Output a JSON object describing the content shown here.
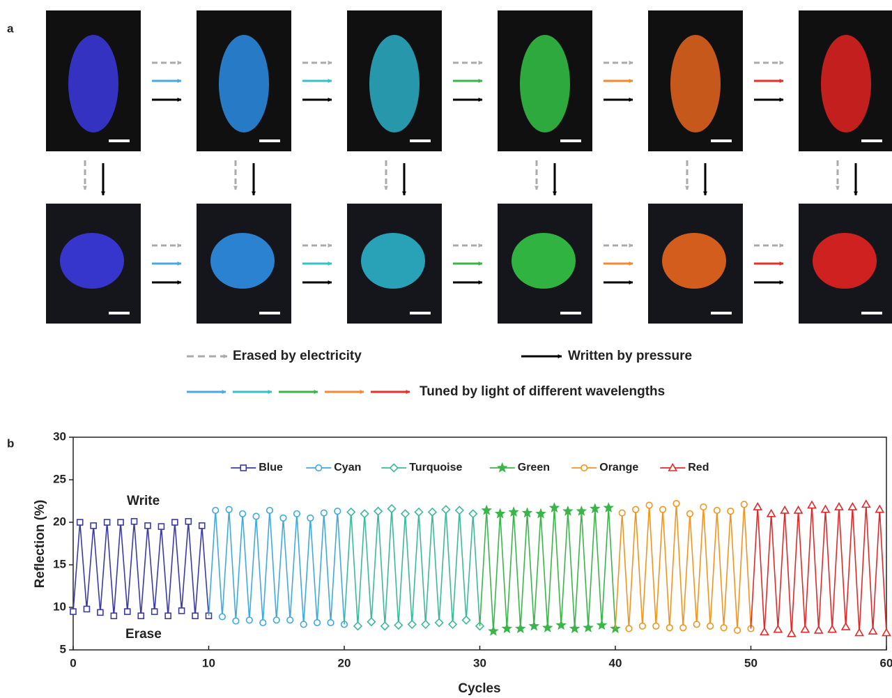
{
  "panel_a": {
    "label": "a",
    "legend": {
      "erased": "Erased by electricity",
      "written": "Written by pressure",
      "tuned": "Tuned by light of different wavelengths"
    }
  },
  "chart_data": {
    "type": "line",
    "label": "b",
    "xlabel": "Cycles",
    "ylabel": "Reflection (%)",
    "xlim": [
      0,
      60
    ],
    "xticks": [
      0,
      10,
      20,
      30,
      40,
      50,
      60
    ],
    "ylim": [
      5,
      30
    ],
    "yticks": [
      5,
      10,
      15,
      20,
      25,
      30
    ],
    "legend": "upper center",
    "annotations": [
      "Write",
      "Erase"
    ],
    "series": [
      {
        "name": "Blue",
        "color": "#3a3aa8",
        "marker": "square",
        "x": [
          0,
          0.5,
          1,
          1.5,
          2,
          2.5,
          3,
          3.5,
          4,
          4.5,
          5,
          5.5,
          6,
          6.5,
          7,
          7.5,
          8,
          8.5,
          9,
          9.5,
          10
        ],
        "values": [
          9.5,
          20.0,
          9.8,
          19.6,
          9.4,
          20.0,
          9.0,
          20.0,
          9.5,
          20.1,
          9.0,
          19.6,
          9.5,
          19.5,
          9.0,
          20.0,
          9.6,
          20.1,
          9.0,
          19.6,
          9.0
        ]
      },
      {
        "name": "Cyan",
        "color": "#3fa9e0",
        "marker": "circle",
        "x": [
          10.5,
          11,
          11.5,
          12,
          12.5,
          13,
          13.5,
          14,
          14.5,
          15,
          15.5,
          16,
          16.5,
          17,
          17.5,
          18,
          18.5,
          19,
          19.5,
          20
        ],
        "values": [
          21.4,
          8.9,
          21.5,
          8.4,
          21.0,
          8.5,
          20.7,
          8.2,
          21.4,
          8.5,
          20.5,
          8.5,
          21.0,
          8.0,
          20.5,
          8.2,
          21.1,
          8.2,
          21.3,
          8.0
        ]
      },
      {
        "name": "Turquoise",
        "color": "#3cb99a",
        "marker": "diamond",
        "x": [
          20.5,
          21,
          21.5,
          22,
          22.5,
          23,
          23.5,
          24,
          24.5,
          25,
          25.5,
          26,
          26.5,
          27,
          27.5,
          28,
          28.5,
          29,
          29.5,
          30
        ],
        "values": [
          21.2,
          7.8,
          21.0,
          8.3,
          21.3,
          7.8,
          21.6,
          7.9,
          21.0,
          8.0,
          21.2,
          8.0,
          21.2,
          8.2,
          21.5,
          8.0,
          21.4,
          8.5,
          21.0,
          7.8
        ]
      },
      {
        "name": "Green",
        "color": "#3ab54a",
        "marker": "star",
        "x": [
          30.5,
          31,
          31.5,
          32,
          32.5,
          33,
          33.5,
          34,
          34.5,
          35,
          35.5,
          36,
          36.5,
          37,
          37.5,
          38,
          38.5,
          39,
          39.5,
          40
        ],
        "values": [
          21.4,
          7.2,
          21.0,
          7.5,
          21.2,
          7.5,
          21.1,
          7.8,
          21.0,
          7.6,
          21.7,
          7.9,
          21.3,
          7.5,
          21.3,
          7.6,
          21.6,
          7.9,
          21.7,
          7.5
        ]
      },
      {
        "name": "Orange",
        "color": "#f0951e",
        "marker": "circle",
        "x": [
          40.5,
          41,
          41.5,
          42,
          42.5,
          43,
          43.5,
          44,
          44.5,
          45,
          45.5,
          46,
          46.5,
          47,
          47.5,
          48,
          48.5,
          49,
          49.5,
          50
        ],
        "values": [
          21.1,
          7.5,
          21.5,
          7.8,
          22.0,
          7.8,
          21.5,
          7.6,
          22.2,
          7.6,
          21.0,
          8.0,
          21.8,
          7.8,
          21.4,
          7.6,
          21.3,
          7.3,
          22.1,
          7.5
        ]
      },
      {
        "name": "Red",
        "color": "#e02a2a",
        "marker": "triangle",
        "x": [
          50.5,
          51,
          51.5,
          52,
          52.5,
          53,
          53.5,
          54,
          54.5,
          55,
          55.5,
          56,
          56.5,
          57,
          57.5,
          58,
          58.5,
          59,
          59.5,
          60
        ],
        "values": [
          21.8,
          7.1,
          21.0,
          7.4,
          21.4,
          6.9,
          21.4,
          7.4,
          22.0,
          7.3,
          21.5,
          7.4,
          21.8,
          7.7,
          21.8,
          7.0,
          22.1,
          7.2,
          21.5,
          7.0
        ]
      }
    ]
  }
}
